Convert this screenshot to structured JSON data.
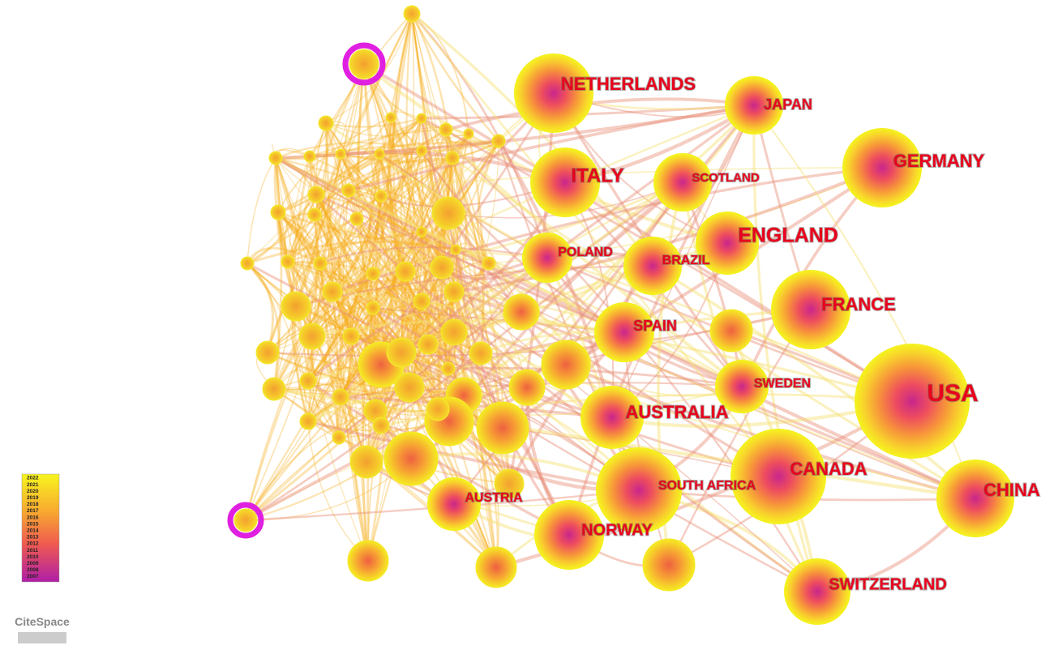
{
  "nodes": [
    {
      "label": "NETHERLANDS"
    },
    {
      "label": "JAPAN"
    },
    {
      "label": "GERMANY"
    },
    {
      "label": "ITALY"
    },
    {
      "label": "SCOTLAND"
    },
    {
      "label": "ENGLAND"
    },
    {
      "label": "POLAND"
    },
    {
      "label": "BRAZIL"
    },
    {
      "label": "FRANCE"
    },
    {
      "label": "SPAIN"
    },
    {
      "label": "SWEDEN"
    },
    {
      "label": "USA"
    },
    {
      "label": "AUSTRALIA"
    },
    {
      "label": "CANADA"
    },
    {
      "label": "CHINA"
    },
    {
      "label": "SOUTH AFRICA"
    },
    {
      "label": "AUSTRIA"
    },
    {
      "label": "NORWAY"
    },
    {
      "label": "SWITZERLAND"
    }
  ],
  "legend": {
    "years": [
      "2022",
      "2021",
      "2020",
      "2019",
      "2018",
      "2017",
      "2016",
      "2015",
      "2014",
      "2013",
      "2012",
      "2011",
      "2010",
      "2009",
      "2008",
      "2007"
    ]
  },
  "logo": "CiteSpace"
}
